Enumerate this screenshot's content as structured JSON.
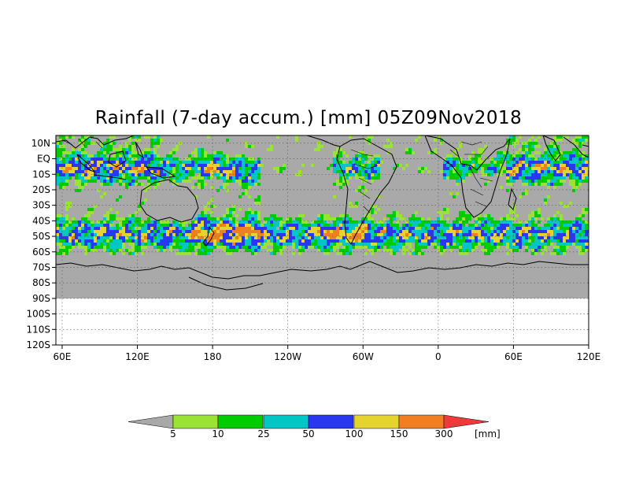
{
  "title": "Rainfall (7-day accum.) [mm] 05Z09Nov2018",
  "map": {
    "lat_labels": [
      "10N",
      "EQ",
      "10S",
      "20S",
      "30S",
      "40S",
      "50S",
      "60S",
      "70S",
      "80S",
      "90S",
      "100S",
      "110S",
      "120S"
    ],
    "lat_values": [
      10,
      0,
      -10,
      -20,
      -30,
      -40,
      -50,
      -60,
      -70,
      -80,
      -90,
      -100,
      -110,
      -120
    ],
    "lon_labels": [
      "60E",
      "120E",
      "180",
      "120W",
      "60W",
      "0",
      "60E",
      "120E"
    ],
    "lon_values": [
      60,
      120,
      180,
      240,
      300,
      360,
      420,
      480
    ],
    "lon_range": [
      55,
      480
    ],
    "lat_range": [
      15,
      -120
    ],
    "no_data_color": "#a9a9a9",
    "background_below_90S": "#ffffff",
    "grid": "dotted"
  },
  "legend": {
    "labels": [
      "5",
      "10",
      "25",
      "50",
      "100",
      "150",
      "300"
    ],
    "unit": "[mm]",
    "colors": [
      "#a9a9a9",
      "#9ae233",
      "#00cc00",
      "#00c6c6",
      "#2a37f0",
      "#e5d42d",
      "#f07f22",
      "#f03a3a"
    ],
    "bins": [
      [
        "below 5",
        "#a9a9a9"
      ],
      [
        "5-10",
        "#9ae233"
      ],
      [
        "10-25",
        "#00cc00"
      ],
      [
        "25-50",
        "#00c6c6"
      ],
      [
        "50-100",
        "#2a37f0"
      ],
      [
        "100-150",
        "#e5d42d"
      ],
      [
        "150-300",
        "#f07f22"
      ],
      [
        "above 300",
        "#f03a3a"
      ]
    ]
  }
}
